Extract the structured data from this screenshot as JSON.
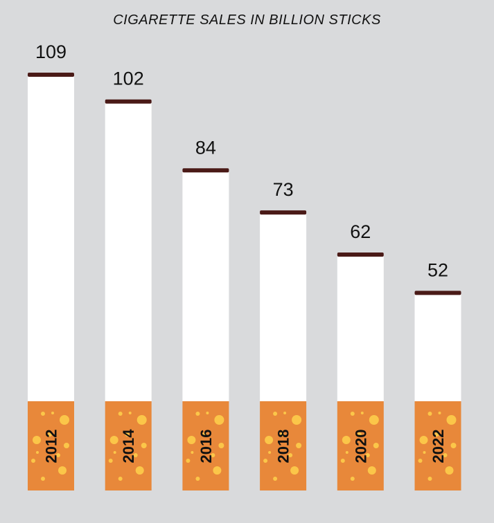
{
  "chart_data": {
    "type": "bar",
    "title": "CIGARETTE SALES IN BILLION STICKS",
    "categories": [
      "2012",
      "2014",
      "2016",
      "2018",
      "2020",
      "2022"
    ],
    "values": [
      109,
      102,
      84,
      73,
      62,
      52
    ],
    "ylim": [
      0,
      109
    ],
    "grid": false,
    "legend": "none",
    "colors": {
      "background": "#d9dadc",
      "paper": "#ffffff",
      "ash_tip": "#4a1a17",
      "filter": "#e8883a",
      "filter_dots": "#fbc649"
    }
  }
}
